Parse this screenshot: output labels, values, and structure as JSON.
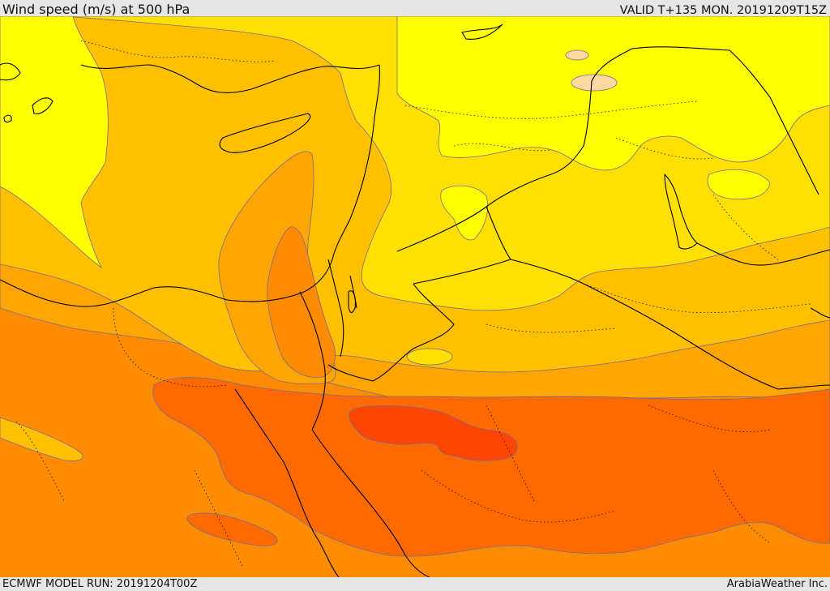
{
  "header": {
    "title": "Wind speed (m/s) at 500 hPa",
    "valid": "VALID T+135 MON. 20191209T15Z"
  },
  "footer": {
    "model_run": "ECMWF MODEL RUN: 20191204T00Z",
    "credit": "ArabiaWeather Inc."
  },
  "colors": {
    "yellow_bright": "#ffff00",
    "yellow": "#ffe000",
    "yellow_orange": "#ffc000",
    "orange_light": "#ffa500",
    "orange": "#ff8c00",
    "orange_dark": "#ff6a00",
    "red_orange": "#ff4500",
    "peach": "#fcd9a0",
    "coastline": "#000000",
    "contour": "#7a6a8a"
  }
}
